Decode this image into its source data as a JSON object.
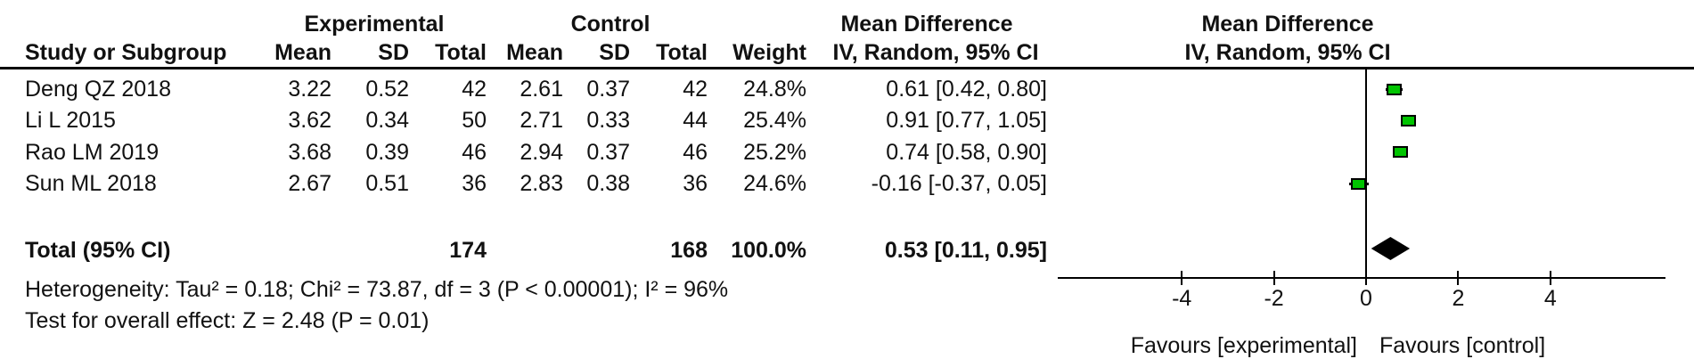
{
  "table": {
    "group_headers": {
      "experimental": "Experimental",
      "control": "Control",
      "effect": "Mean Difference"
    },
    "col_headers": {
      "study": "Study or Subgroup",
      "mean": "Mean",
      "sd": "SD",
      "total": "Total",
      "weight": "Weight",
      "ci": "IV, Random, 95% CI"
    },
    "rows": [
      {
        "study": "Deng QZ 2018",
        "mean1": "3.22",
        "sd1": "0.52",
        "total1": "42",
        "mean2": "2.61",
        "sd2": "0.37",
        "total2": "42",
        "weight": "24.8%",
        "ci": "0.61 [0.42, 0.80]"
      },
      {
        "study": "Li L 2015",
        "mean1": "3.62",
        "sd1": "0.34",
        "total1": "50",
        "mean2": "2.71",
        "sd2": "0.33",
        "total2": "44",
        "weight": "25.4%",
        "ci": "0.91 [0.77, 1.05]"
      },
      {
        "study": "Rao LM 2019",
        "mean1": "3.68",
        "sd1": "0.39",
        "total1": "46",
        "mean2": "2.94",
        "sd2": "0.37",
        "total2": "46",
        "weight": "25.2%",
        "ci": "0.74 [0.58, 0.90]"
      },
      {
        "study": "Sun ML 2018",
        "mean1": "2.67",
        "sd1": "0.51",
        "total1": "36",
        "mean2": "2.83",
        "sd2": "0.38",
        "total2": "36",
        "weight": "24.6%",
        "ci": "-0.16 [-0.37, 0.05]"
      }
    ],
    "total_row": {
      "label": "Total (95% CI)",
      "total1": "174",
      "total2": "168",
      "weight": "100.0%",
      "ci": "0.53 [0.11, 0.95]"
    },
    "heterogeneity": "Heterogeneity: Tau² = 0.18; Chi² = 73.87, df = 3 (P < 0.00001); I² = 96%",
    "overall_effect": "Test for overall effect: Z = 2.48 (P = 0.01)"
  },
  "plot": {
    "header_line1": "Mean Difference",
    "header_line2": "IV, Random, 95% CI",
    "favours_left": "Favours [experimental]",
    "favours_right": "Favours [control]"
  },
  "chart_data": {
    "type": "scatter",
    "subtype": "forest-plot-mean-difference",
    "model": "IV, Random, 95% CI",
    "studies": [
      {
        "name": "Deng QZ 2018",
        "md": 0.61,
        "ci_lower": 0.42,
        "ci_upper": 0.8,
        "weight_pct": 24.8
      },
      {
        "name": "Li L 2015",
        "md": 0.91,
        "ci_lower": 0.77,
        "ci_upper": 1.05,
        "weight_pct": 25.4
      },
      {
        "name": "Rao LM 2019",
        "md": 0.74,
        "ci_lower": 0.58,
        "ci_upper": 0.9,
        "weight_pct": 25.2
      },
      {
        "name": "Sun ML 2018",
        "md": -0.16,
        "ci_lower": -0.37,
        "ci_upper": 0.05,
        "weight_pct": 24.6
      }
    ],
    "total": {
      "name": "Total (95% CI)",
      "md": 0.53,
      "ci_lower": 0.11,
      "ci_upper": 0.95,
      "weight_pct": 100.0
    },
    "x_ticks": [
      -4,
      -2,
      0,
      2,
      4
    ],
    "xlim": [
      -6.7,
      6.5
    ],
    "zero_line": 0,
    "heterogeneity": {
      "tau2": 0.18,
      "chi2": 73.87,
      "df": 3,
      "p": "< 0.00001",
      "i2_pct": 96
    },
    "overall_effect": {
      "z": 2.48,
      "p": "= 0.01"
    },
    "xlabel_left": "Favours [experimental]",
    "xlabel_right": "Favours [control]",
    "marker_color": "#00c400",
    "diamond_color": "#000000",
    "legend_position": "none",
    "grid": false
  }
}
